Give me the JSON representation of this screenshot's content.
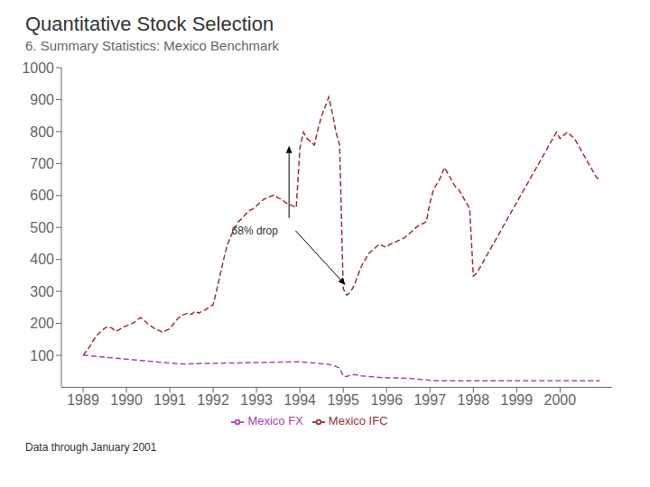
{
  "chart_data": {
    "type": "line",
    "title": "Quantitative Stock Selection",
    "subtitle": "6. Summary Statistics: Mexico Benchmark",
    "footnote": "Data through January 2001",
    "annotations": [
      "68% drop"
    ],
    "xlim": [
      1988.5,
      2001.2
    ],
    "xticks": [
      1989,
      1990,
      1991,
      1992,
      1993,
      1994,
      1995,
      1996,
      1997,
      1998,
      1999,
      2000
    ],
    "ylim": [
      0,
      1000
    ],
    "yticks": [
      100,
      200,
      300,
      400,
      500,
      600,
      700,
      800,
      900,
      1000
    ],
    "grid": false,
    "legend": "bottom",
    "series": [
      {
        "name": "Mexico IFC",
        "color": "#993333",
        "line_style": "dashed",
        "x": [
          1989.0,
          1989.083,
          1989.167,
          1989.25,
          1989.333,
          1989.417,
          1989.5,
          1989.583,
          1989.667,
          1989.75,
          1989.833,
          1989.917,
          1990.0,
          1990.083,
          1990.167,
          1990.25,
          1990.333,
          1990.417,
          1990.5,
          1990.583,
          1990.667,
          1990.75,
          1990.833,
          1990.917,
          1991.0,
          1991.083,
          1991.167,
          1991.25,
          1991.333,
          1991.417,
          1991.5,
          1991.583,
          1991.667,
          1991.75,
          1991.833,
          1991.917,
          1992.0,
          1992.083,
          1992.167,
          1992.25,
          1992.333,
          1992.417,
          1992.5,
          1992.583,
          1992.667,
          1992.75,
          1992.833,
          1992.917,
          1993.0,
          1993.083,
          1993.167,
          1993.25,
          1993.333,
          1993.417,
          1993.5,
          1993.583,
          1993.667,
          1993.75,
          1993.833,
          1993.917,
          1994.0,
          1994.083,
          1994.167,
          1994.25,
          1994.333,
          1994.417,
          1994.5,
          1994.583,
          1994.667,
          1994.75,
          1994.833,
          1994.917,
          1995.0,
          1995.083,
          1995.167,
          1995.25,
          1995.333,
          1995.417,
          1995.5,
          1995.583,
          1995.667,
          1995.75,
          1995.833,
          1995.917,
          1996.0,
          1996.083,
          1996.167,
          1996.25,
          1996.333,
          1996.417,
          1996.5,
          1996.583,
          1996.667,
          1996.75,
          1996.833,
          1996.917,
          1997.0,
          1997.083,
          1997.167,
          1997.25,
          1997.333,
          1997.417,
          1997.5,
          1997.583,
          1997.667,
          1997.75,
          1997.833,
          1997.917,
          1998.0,
          1998.083,
          1998.167,
          1998.25,
          1998.333,
          1998.417,
          1998.5,
          1998.583,
          1998.667,
          1998.75,
          1998.833,
          1998.917,
          1999.0,
          1999.083,
          1999.167,
          1999.25,
          1999.333,
          1999.417,
          1999.5,
          1999.583,
          1999.667,
          1999.75,
          1999.833,
          1999.917,
          2000.0,
          2000.083,
          2000.167,
          2000.25,
          2000.333,
          2000.417,
          2000.5,
          2000.583,
          2000.667,
          2000.75,
          2000.833,
          2000.917
        ],
        "values": [
          100,
          115,
          130,
          150,
          165,
          175,
          185,
          190,
          185,
          175,
          180,
          188,
          192,
          197,
          202,
          212,
          218,
          208,
          198,
          190,
          182,
          178,
          172,
          178,
          183,
          198,
          212,
          222,
          228,
          232,
          228,
          238,
          232,
          238,
          243,
          252,
          258,
          305,
          355,
          405,
          448,
          475,
          498,
          518,
          528,
          542,
          552,
          558,
          568,
          578,
          588,
          592,
          598,
          602,
          592,
          588,
          578,
          572,
          568,
          562,
          748,
          798,
          778,
          768,
          758,
          808,
          848,
          878,
          908,
          858,
          798,
          758,
          308,
          288,
          298,
          318,
          348,
          378,
          398,
          418,
          428,
          438,
          448,
          442,
          438,
          448,
          452,
          458,
          462,
          468,
          478,
          488,
          498,
          508,
          512,
          518,
          578,
          618,
          638,
          658,
          688,
          668,
          648,
          628,
          618,
          598,
          578,
          558,
          348,
          358,
          378,
          398,
          418,
          438,
          458,
          478,
          498,
          518,
          538,
          558,
          578,
          598,
          618,
          638,
          658,
          678,
          698,
          718,
          738,
          758,
          778,
          798,
          778,
          788,
          798,
          788,
          778,
          758,
          738,
          718,
          698,
          678,
          658,
          648
        ]
      },
      {
        "name": "Mexico FX",
        "color": "#aa44aa",
        "line_style": "dashed",
        "x": [
          1989.0,
          1989.083,
          1989.167,
          1989.25,
          1989.333,
          1989.417,
          1989.5,
          1989.583,
          1989.667,
          1989.75,
          1989.833,
          1989.917,
          1990.0,
          1990.083,
          1990.167,
          1990.25,
          1990.333,
          1990.417,
          1990.5,
          1990.583,
          1990.667,
          1990.75,
          1990.833,
          1990.917,
          1991.0,
          1991.083,
          1991.167,
          1991.25,
          1994.0,
          1994.083,
          1994.167,
          1994.25,
          1994.333,
          1994.417,
          1994.5,
          1994.583,
          1994.667,
          1994.75,
          1994.833,
          1994.917,
          1995.0,
          1995.083,
          1995.167,
          1995.25,
          1995.333,
          1995.417,
          1995.5,
          1995.583,
          1995.667,
          1995.75,
          1995.833,
          1995.917,
          1996.5,
          1996.583,
          1996.667,
          1996.75,
          1996.833,
          1996.917,
          1997.0,
          1997.083,
          1997.167,
          1997.25,
          1997.333,
          1997.417,
          1997.5,
          1997.583,
          1997.667,
          1997.75,
          1997.833,
          1997.917,
          1998.0,
          1998.083,
          1998.167,
          1998.25,
          1998.333,
          1998.417,
          1998.5,
          1998.583,
          1998.667,
          1998.75,
          1998.833,
          1998.917,
          1999.0,
          1999.083,
          1999.167,
          1999.25,
          1999.333,
          1999.417,
          1999.5,
          1999.583,
          1999.667,
          1999.75,
          1999.833,
          1999.917,
          2000.0,
          2000.083,
          2000.167,
          2000.25,
          2000.333,
          2000.417,
          2000.5,
          2000.583,
          2000.667,
          2000.75,
          2000.833,
          2000.917
        ],
        "values": [
          100,
          100,
          98,
          97,
          96,
          95,
          94,
          93,
          92,
          91,
          90,
          89,
          88,
          87,
          86,
          85,
          84,
          83,
          82,
          81,
          80,
          79,
          78,
          77,
          76,
          75,
          74,
          73,
          80,
          79,
          78,
          77,
          76,
          75,
          74,
          73,
          72,
          68,
          65,
          60,
          35,
          34,
          38,
          40,
          38,
          36,
          35,
          34,
          33,
          32,
          31,
          30,
          28,
          27,
          26,
          25,
          24,
          23,
          22,
          21,
          20,
          20,
          20,
          20,
          20,
          20,
          20,
          20,
          20,
          20,
          20,
          20,
          20,
          20,
          20,
          20,
          20,
          20,
          20,
          20,
          20,
          20,
          20,
          20,
          20,
          20,
          20,
          20,
          20,
          20,
          20,
          20,
          20,
          20,
          20,
          20,
          20,
          20,
          20,
          20,
          20,
          20,
          20,
          20,
          20,
          20
        ]
      }
    ]
  }
}
